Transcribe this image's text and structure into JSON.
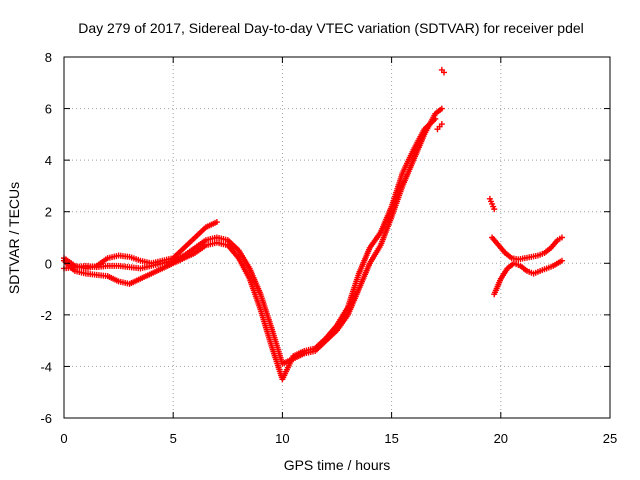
{
  "chart_data": {
    "type": "scatter",
    "title": "Day 279 of 2017, Sidereal Day-to-day VTEC variation (SDTVAR) for receiver pdel",
    "xlabel": "GPS time / hours",
    "ylabel": "SDTVAR / TECUs",
    "xlim": [
      0,
      25
    ],
    "ylim": [
      -6,
      8
    ],
    "xticks": [
      "0",
      "5",
      "10",
      "15",
      "20",
      "25"
    ],
    "xtick_values": [
      0,
      5,
      10,
      15,
      20,
      25
    ],
    "yticks": [
      "-6",
      "-4",
      "-2",
      "0",
      "2",
      "4",
      "6",
      "8"
    ],
    "ytick_values": [
      -6,
      -4,
      -2,
      0,
      2,
      4,
      6,
      8
    ],
    "grid": true,
    "marker": "+",
    "series": [
      {
        "name": "SDTVAR",
        "color": "#ff0000",
        "traces": [
          {
            "x": [
              0.0,
              0.5,
              1.0,
              1.5,
              2.0,
              2.5,
              3.0,
              3.5,
              4.0,
              4.5,
              5.0,
              5.5,
              6.0,
              6.5,
              7.0,
              7.5,
              8.0,
              8.5,
              9.0,
              9.5,
              10.0,
              10.5,
              11.0,
              11.5,
              12.0,
              12.5,
              13.0,
              13.5,
              14.0,
              14.5,
              15.0,
              15.5,
              16.0,
              16.5,
              17.0,
              17.3
            ],
            "y": [
              -0.2,
              -0.15,
              -0.1,
              -0.15,
              -0.1,
              -0.1,
              -0.15,
              -0.2,
              -0.1,
              0.0,
              0.1,
              0.3,
              0.6,
              0.9,
              1.0,
              0.9,
              0.5,
              -0.2,
              -1.2,
              -2.5,
              -3.9,
              -3.7,
              -3.5,
              -3.4,
              -3.0,
              -2.6,
              -2.0,
              -1.0,
              0.0,
              0.7,
              1.8,
              3.0,
              4.0,
              5.0,
              5.8,
              6.0
            ]
          },
          {
            "x": [
              0.0,
              0.5,
              1.0,
              1.5,
              2.0,
              2.5,
              3.0,
              3.5,
              4.0,
              4.5,
              5.0,
              5.5,
              6.0,
              6.5,
              7.0,
              7.5,
              8.0,
              8.5,
              9.0,
              9.5,
              10.0,
              10.5,
              11.0,
              11.5,
              12.0,
              12.5,
              13.0,
              13.5,
              14.0,
              14.5,
              15.0,
              15.5,
              16.0,
              16.5,
              17.0
            ],
            "y": [
              0.1,
              -0.3,
              -0.4,
              -0.45,
              -0.5,
              -0.7,
              -0.8,
              -0.6,
              -0.4,
              -0.2,
              0.0,
              0.2,
              0.4,
              0.7,
              0.8,
              0.7,
              0.2,
              -0.6,
              -1.8,
              -3.2,
              -4.5,
              -3.6,
              -3.4,
              -3.3,
              -2.9,
              -2.4,
              -1.7,
              -0.4,
              0.6,
              1.2,
              2.2,
              3.5,
              4.4,
              5.2,
              5.6
            ]
          },
          {
            "x": [
              0.0,
              0.5,
              1.0,
              1.5,
              2.0,
              2.5,
              3.0,
              3.5,
              4.0,
              4.5,
              5.0,
              5.5,
              6.0,
              6.5,
              7.0
            ],
            "y": [
              0.2,
              -0.1,
              -0.2,
              -0.1,
              0.2,
              0.3,
              0.25,
              0.1,
              0.0,
              0.1,
              0.2,
              0.6,
              1.0,
              1.4,
              1.6
            ]
          },
          {
            "x": [
              19.6,
              19.9,
              20.2,
              20.5,
              20.8,
              21.1,
              21.4,
              21.7,
              22.0,
              22.3,
              22.6,
              22.8
            ],
            "y": [
              1.0,
              0.7,
              0.4,
              0.2,
              0.15,
              0.2,
              0.25,
              0.3,
              0.4,
              0.6,
              0.9,
              1.0
            ]
          },
          {
            "x": [
              19.7,
              20.0,
              20.3,
              20.6,
              20.9,
              21.2,
              21.5,
              21.8,
              22.1,
              22.4,
              22.8
            ],
            "y": [
              -1.2,
              -0.6,
              -0.2,
              0.0,
              -0.1,
              -0.3,
              -0.4,
              -0.3,
              -0.2,
              -0.1,
              0.1
            ]
          },
          {
            "x": [
              19.5,
              19.6,
              19.7
            ],
            "y": [
              2.5,
              2.3,
              2.1
            ]
          },
          {
            "x": [
              17.1,
              17.2,
              17.3
            ],
            "y": [
              5.2,
              5.3,
              5.4
            ]
          },
          {
            "x": [
              17.3,
              17.4
            ],
            "y": [
              7.5,
              7.4
            ]
          }
        ]
      }
    ]
  }
}
